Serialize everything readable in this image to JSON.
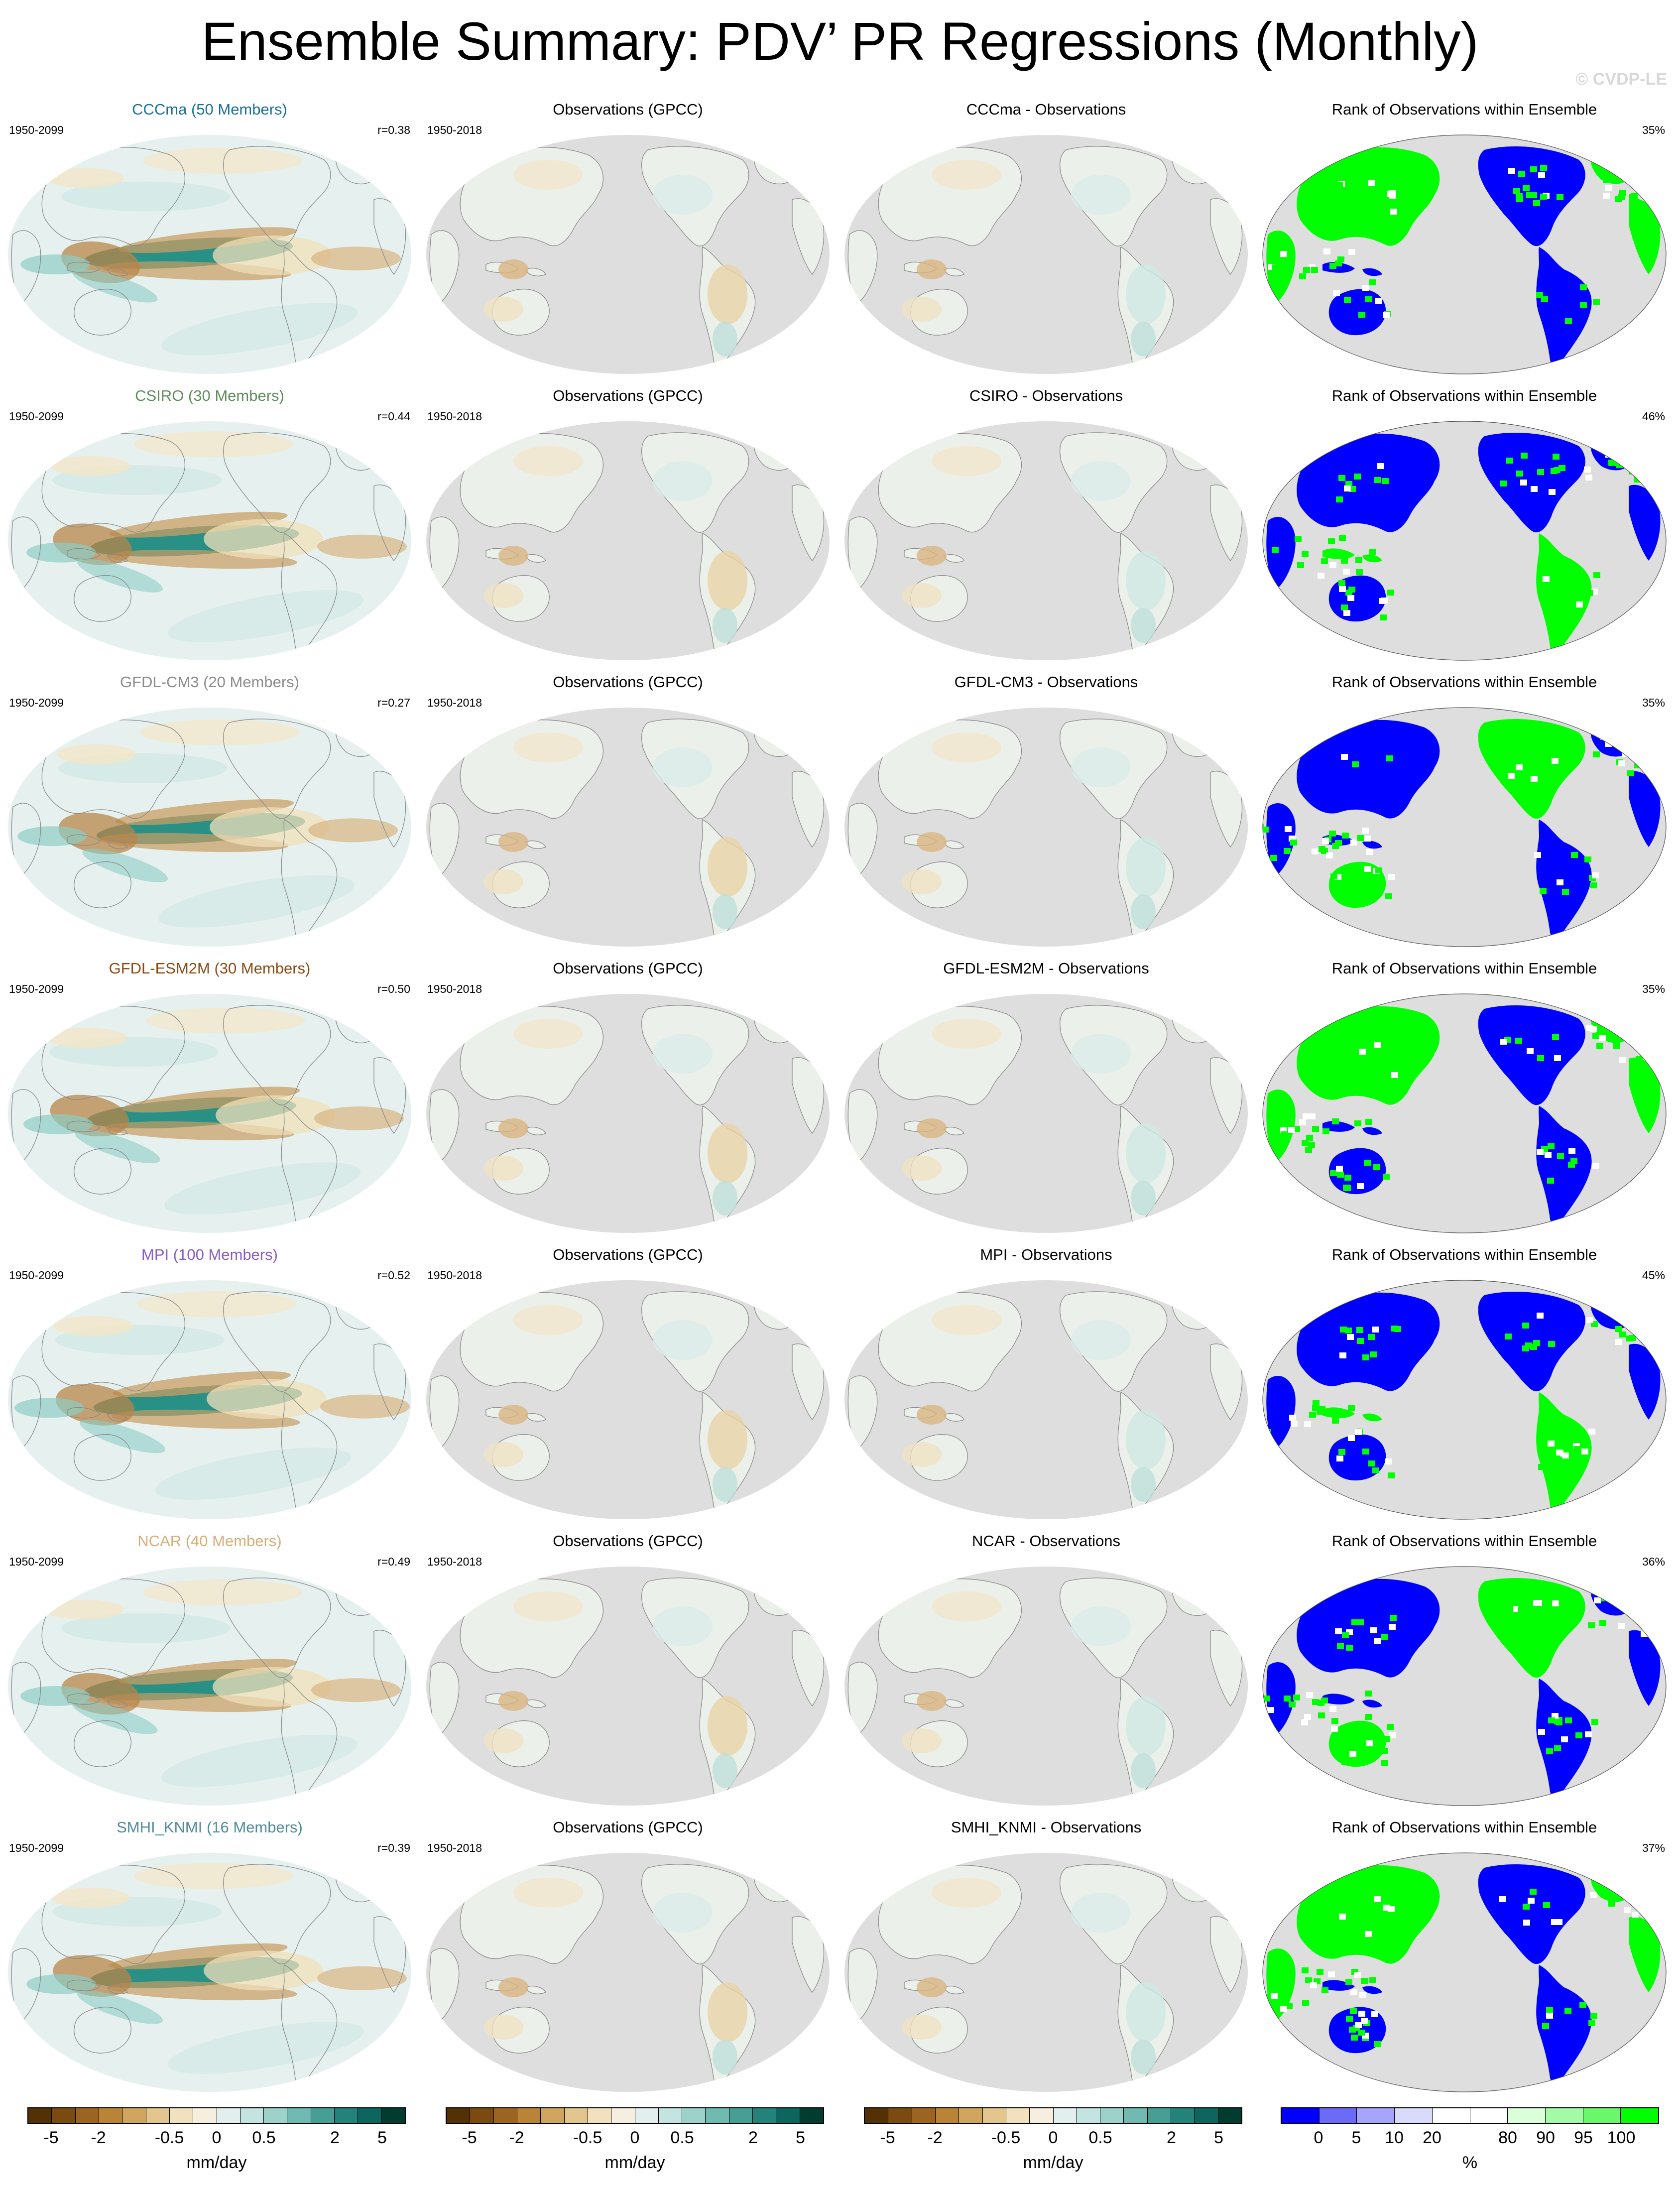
{
  "title": "Ensemble Summary: PDV’ PR Regressions (Monthly)",
  "copyright": "© CVDP-LE",
  "rows": [
    {
      "model_title": "CCCma (50 Members)",
      "model_color": "#1a6f99",
      "model_period": "1950-2099",
      "r_value": "r=0.38",
      "obs_title": "Observations (GPCC)",
      "obs_period": "1950-2018",
      "diff_title": "CCCma - Observations",
      "rank_title": "Rank of Observations within Ensemble",
      "rank_pct": "35%"
    },
    {
      "model_title": "CSIRO (30 Members)",
      "model_color": "#5e8c5a",
      "model_period": "1950-2099",
      "r_value": "r=0.44",
      "obs_title": "Observations (GPCC)",
      "obs_period": "1950-2018",
      "diff_title": "CSIRO - Observations",
      "rank_title": "Rank of Observations within Ensemble",
      "rank_pct": "46%"
    },
    {
      "model_title": "GFDL-CM3 (20 Members)",
      "model_color": "#8c8c8c",
      "model_period": "1950-2099",
      "r_value": "r=0.27",
      "obs_title": "Observations (GPCC)",
      "obs_period": "1950-2018",
      "diff_title": "GFDL-CM3 - Observations",
      "rank_title": "Rank of Observations within Ensemble",
      "rank_pct": "35%"
    },
    {
      "model_title": "GFDL-ESM2M (30 Members)",
      "model_color": "#8b4a14",
      "model_period": "1950-2099",
      "r_value": "r=0.50",
      "obs_title": "Observations (GPCC)",
      "obs_period": "1950-2018",
      "diff_title": "GFDL-ESM2M - Observations",
      "rank_title": "Rank of Observations within Ensemble",
      "rank_pct": "35%"
    },
    {
      "model_title": "MPI (100 Members)",
      "model_color": "#8a5cc8",
      "model_period": "1950-2099",
      "r_value": "r=0.52",
      "obs_title": "Observations (GPCC)",
      "obs_period": "1950-2018",
      "diff_title": "MPI - Observations",
      "rank_title": "Rank of Observations within Ensemble",
      "rank_pct": "45%"
    },
    {
      "model_title": "NCAR (40 Members)",
      "model_color": "#d6ae76",
      "model_period": "1950-2099",
      "r_value": "r=0.49",
      "obs_title": "Observations (GPCC)",
      "obs_period": "1950-2018",
      "diff_title": "NCAR - Observations",
      "rank_title": "Rank of Observations within Ensemble",
      "rank_pct": "36%"
    },
    {
      "model_title": "SMHI_KNMI (16 Members)",
      "model_color": "#4f8a98",
      "model_period": "1950-2099",
      "r_value": "r=0.39",
      "obs_title": "Observations (GPCC)",
      "obs_period": "1950-2018",
      "diff_title": "SMHI_KNMI - Observations",
      "rank_title": "Rank of Observations within Ensemble",
      "rank_pct": "37%"
    }
  ],
  "colorbars": {
    "regression": {
      "ticks": [
        "-5",
        "-2",
        "-0.5",
        "0",
        "0.5",
        "2",
        "5"
      ],
      "unit": "mm/day",
      "colors": [
        "#543005",
        "#7a4a10",
        "#9b6420",
        "#b98338",
        "#cfa55f",
        "#e2c68e",
        "#f1e2bd",
        "#f6efdf",
        "#e3efee",
        "#c3e4e0",
        "#9dd2cb",
        "#71bab1",
        "#479e95",
        "#23827a",
        "#0d655e",
        "#003c30"
      ]
    },
    "rank": {
      "ticks": [
        "0",
        "5",
        "10",
        "20",
        "80",
        "90",
        "95",
        "100"
      ],
      "unit": "%",
      "colors": [
        "#0000ff",
        "#6b6bf7",
        "#a5a5f9",
        "#dadafc",
        "#ffffff",
        "#ffffff",
        "#daffda",
        "#a5fba5",
        "#6bf76b",
        "#00ff00"
      ]
    }
  },
  "colors": {
    "land_gray": "#dedede",
    "ocean_model": "#e6f1ef",
    "coast": "#8a8a8a",
    "rank_blue": "#0000ff",
    "rank_green": "#00ff00"
  }
}
